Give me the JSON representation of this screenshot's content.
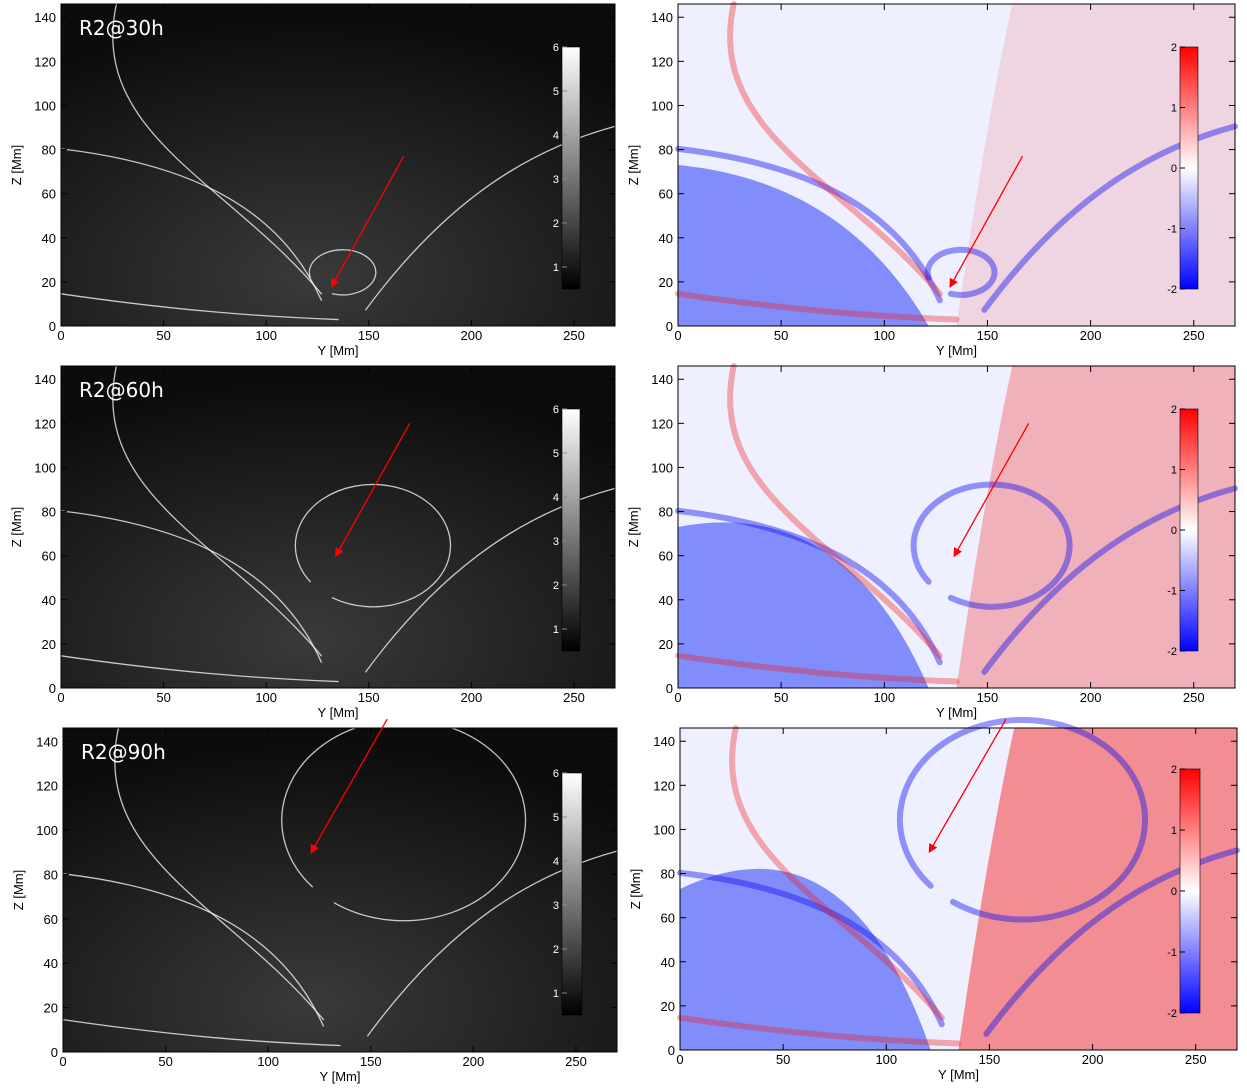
{
  "chart_data": [
    {
      "type": "heatmap",
      "title": "R2@30h",
      "xlabel": "Y [Mm]",
      "ylabel": "Z [Mm]",
      "xlim": [
        0,
        270
      ],
      "ylim": [
        0,
        146
      ],
      "xticks": [
        0,
        50,
        100,
        150,
        200,
        250
      ],
      "yticks": [
        0,
        20,
        40,
        60,
        80,
        100,
        120,
        140
      ],
      "colormap": "gray",
      "colorbar": {
        "min": 0.5,
        "max": 6,
        "ticks": [
          1,
          2,
          3,
          4,
          5,
          6
        ]
      },
      "arrow": {
        "from": [
          167,
          77
        ],
        "to": [
          132,
          18
        ],
        "color": "#ff0000"
      }
    },
    {
      "type": "heatmap",
      "title": "",
      "xlabel": "Y [Mm]",
      "ylabel": "Z [Mm]",
      "xlim": [
        0,
        270
      ],
      "ylim": [
        0,
        146
      ],
      "xticks": [
        0,
        50,
        100,
        150,
        200,
        250
      ],
      "yticks": [
        0,
        20,
        40,
        60,
        80,
        100,
        120,
        140
      ],
      "colormap": "blue-white-red",
      "colorbar": {
        "min": -2,
        "max": 2,
        "ticks": [
          -2,
          -1,
          0,
          1,
          2
        ]
      },
      "arrow": {
        "from": [
          167,
          77
        ],
        "to": [
          132,
          18
        ],
        "color": "#ff0000"
      }
    },
    {
      "type": "heatmap",
      "title": "R2@60h",
      "xlabel": "Y [Mm]",
      "ylabel": "Z [Mm]",
      "xlim": [
        0,
        270
      ],
      "ylim": [
        0,
        146
      ],
      "xticks": [
        0,
        50,
        100,
        150,
        200,
        250
      ],
      "yticks": [
        0,
        20,
        40,
        60,
        80,
        100,
        120,
        140
      ],
      "colormap": "gray",
      "colorbar": {
        "min": 0.5,
        "max": 6,
        "ticks": [
          1,
          2,
          3,
          4,
          5,
          6
        ]
      },
      "arrow": {
        "from": [
          170,
          120
        ],
        "to": [
          134,
          60
        ],
        "color": "#ff0000"
      }
    },
    {
      "type": "heatmap",
      "title": "",
      "xlabel": "Y [Mm]",
      "ylabel": "Z [Mm]",
      "xlim": [
        0,
        270
      ],
      "ylim": [
        0,
        146
      ],
      "xticks": [
        0,
        50,
        100,
        150,
        200,
        250
      ],
      "yticks": [
        0,
        20,
        40,
        60,
        80,
        100,
        120,
        140
      ],
      "colormap": "blue-white-red",
      "colorbar": {
        "min": -2,
        "max": 2,
        "ticks": [
          -2,
          -1,
          0,
          1,
          2
        ]
      },
      "arrow": {
        "from": [
          170,
          120
        ],
        "to": [
          134,
          60
        ],
        "color": "#ff0000"
      }
    },
    {
      "type": "heatmap",
      "title": "R2@90h",
      "xlabel": "Y [Mm]",
      "ylabel": "Z [Mm]",
      "xlim": [
        0,
        270
      ],
      "ylim": [
        0,
        146
      ],
      "xticks": [
        0,
        50,
        100,
        150,
        200,
        250
      ],
      "yticks": [
        0,
        20,
        40,
        60,
        80,
        100,
        120,
        140
      ],
      "colormap": "gray",
      "colorbar": {
        "min": 0.5,
        "max": 6,
        "ticks": [
          1,
          2,
          3,
          4,
          5,
          6
        ]
      },
      "arrow": {
        "from": [
          158,
          150
        ],
        "to": [
          121,
          90
        ],
        "color": "#ff0000"
      }
    },
    {
      "type": "heatmap",
      "title": "",
      "xlabel": "Y [Mm]",
      "ylabel": "Z [Mm]",
      "xlim": [
        0,
        270
      ],
      "ylim": [
        0,
        146
      ],
      "xticks": [
        0,
        50,
        100,
        150,
        200,
        250
      ],
      "yticks": [
        0,
        20,
        40,
        60,
        80,
        100,
        120,
        140
      ],
      "colormap": "blue-white-red",
      "colorbar": {
        "min": -2,
        "max": 2,
        "ticks": [
          -2,
          -1,
          0,
          1,
          2
        ]
      },
      "arrow": {
        "from": [
          158,
          150
        ],
        "to": [
          121,
          90
        ],
        "color": "#ff0000"
      }
    }
  ]
}
